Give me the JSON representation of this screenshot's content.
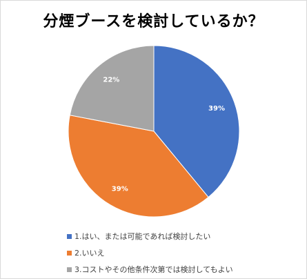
{
  "chart_data": {
    "type": "pie",
    "title": "分煙ブースを検討しているか？",
    "categories": [
      "1.はい、または可能であれば検討したい",
      "2.いいえ",
      "3.コストやその他条件次第では検討してもよい"
    ],
    "values": [
      39,
      39,
      22
    ],
    "data_labels": [
      "39%",
      "39%",
      "22%"
    ],
    "colors": [
      "#4472c4",
      "#ed7d31",
      "#a5a5a5"
    ],
    "legend_position": "bottom-left",
    "label_color": "#ffffff"
  }
}
